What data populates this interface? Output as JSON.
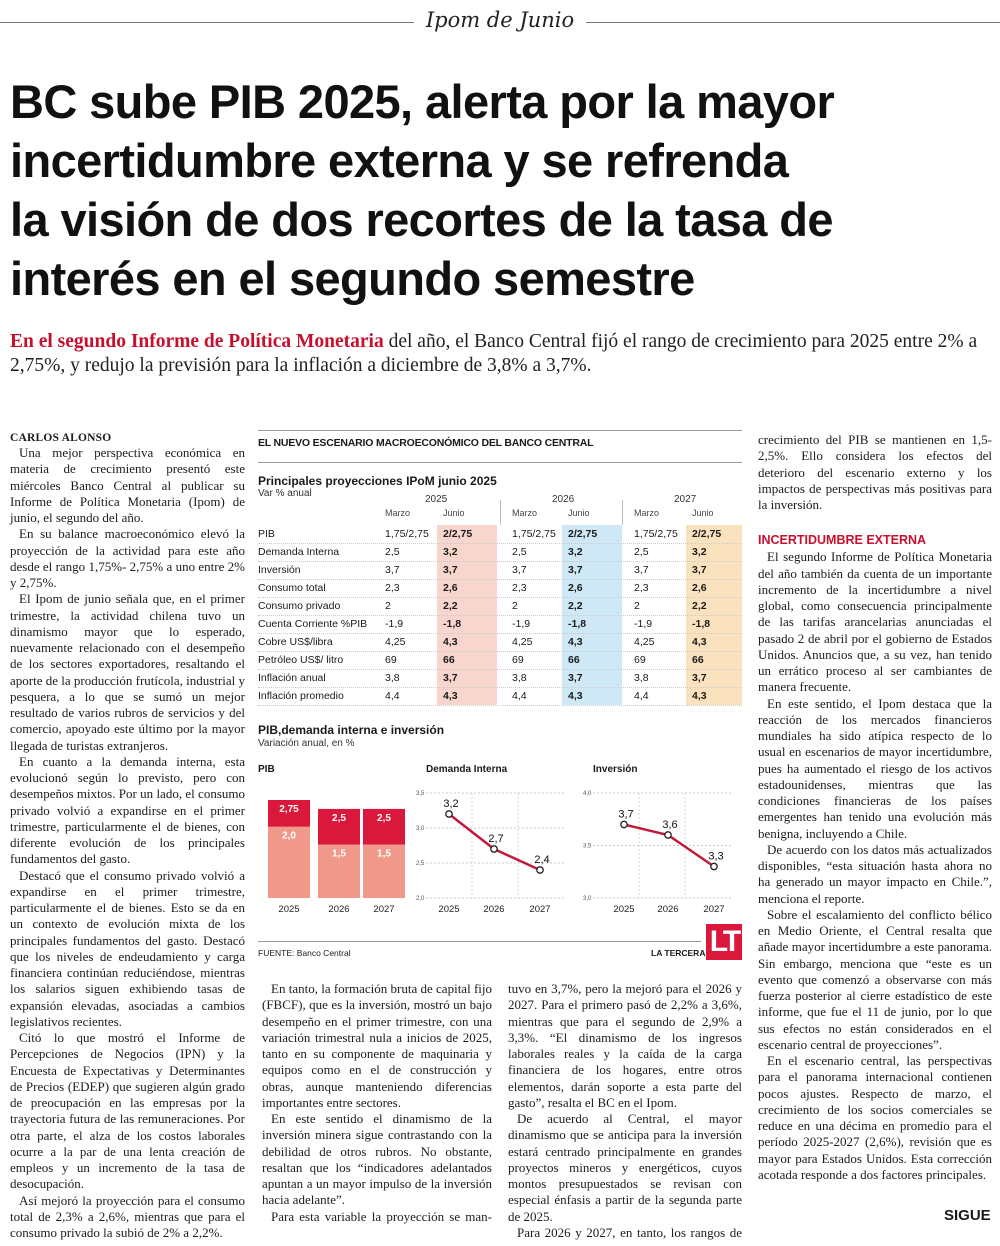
{
  "section_kicker": "Ipom de Junio",
  "headline_lines": [
    "BC sube PIB 2025, alerta por la mayor",
    "incertidumbre externa y se refrenda",
    "la visión de dos recortes de la tasa de",
    "interés en el segundo semestre"
  ],
  "deck": {
    "lead": "En el segundo Informe de Política Monetaria",
    "rest": " del año, el Banco Central fijó el rango de crecimiento para 2025 entre 2% a 2,75%, y redujo la previsión para la inflación a diciembre de 3,8% a 3,7%."
  },
  "byline": "CARLOS ALONSO",
  "col1": [
    "Una mejor perspectiva económica en materia de crecimiento presentó este miércoles Banco Central al publicar su Informe de Política Monetaria (Ipom) de junio, el segundo del año.",
    "En su balance macroeconómico elevó la proyección de la actividad para este año desde el rango 1,75%- 2,75% a uno entre 2% y 2,75%.",
    "El Ipom de junio señala que, en el primer trimestre, la actividad chilena tuvo un dinamismo mayor que lo esperado, nuevamente relacionado con el desempeño de los sectores exportadores, resaltando el aporte de la producción frutícola, industrial y pesquera, a lo que se sumó un mejor resultado de varios rubros de servicios y del comercio, apoyado este último por la mayor llegada de turistas extranjeros.",
    "En cuanto a la demanda interna, esta evolucionó según lo previsto, pero con desempeños mixtos. Por un lado, el consumo privado volvió a expandirse en el primer trimestre, particularmente el de bienes, con diferente evolución de los principales fundamentos del gasto.",
    "Destacó que el consumo privado volvió a expandirse en el primer trimestre, particularmente el de bienes. Esto se da en un contexto de evolución mixta de los principales fundamentos del gasto. Destacó que los niveles de endeudamiento y carga financiera continúan reduciéndose, mientras los salarios siguen exhibiendo tasas de expansión elevadas, asociadas a cambios legislativos recientes.",
    "Citó lo que mostró el Informe de Percepciones de Negocios (IPN) y la Encuesta de Expectativas y Determinantes de Precios (EDEP) que sugieren algún grado de preocupación en las empresas por la trayectoria futura de las remuneraciones. Por otra parte, el alza de los costos laborales ocurre a la par de una lenta creación de empleos y un incremento de la tasa de desocupación.",
    "Así mejoró la proyección para el consumo total de 2,3% a 2,6%, mientras que para el consumo privado la subió de 2% a 2,2%."
  ],
  "col2a": [
    "En tanto, la formación bruta de capital fijo (FBCF), que es la inversión, mostró un bajo desempeño en el primer trimestre, con una variación trimestral nula a inicios de 2025, tanto en su componente de maquinaria y equipos como en el de construcción y obras, aunque manteniendo diferencias importantes entre sectores.",
    "En este sentido el dinamismo de la inversión minera sigue contrastando con la debilidad de otros rubros. No obstante, resaltan que los “indicadores adelantados apuntan a un mayor impulso de la inversión hacia adelante”.",
    "Para esta variable la proyección se man-"
  ],
  "col2b": [
    "tuvo en 3,7%, pero la mejoró para el 2026 y 2027. Para el primero pasó de 2,2% a 3,6%, mientras que para el segundo de 2,9% a 3,3%. “El dinamismo de los ingresos laborales reales y la caída de la carga financiera de los hogares, entre otros elementos, darán soporte a esta parte del gasto”, resalta el BC en el Ipom.",
    "De acuerdo al Central, el mayor dinamismo que se anticipa para la inversión estará centrado principalmente en grandes proyectos mineros y energéticos, cuyos montos presupuestados se revisan con especial énfasis a partir de la segunda parte de 2025.",
    "Para 2026 y 2027, en tanto, los rangos de"
  ],
  "col3_cont": "crecimiento del PIB se mantienen en 1,5-2,5%. Ello considera los efectos del deterioro del escenario externo y los impactos de perspectivas más positivas para la inversión.",
  "col3_subhead": "INCERTIDUMBRE EXTERNA",
  "col3": [
    "El segundo Informe de Política Monetaria del año también da cuenta de un importante incremento de la incertidumbre a nivel global, como consecuencia principalmente de las tarifas arancelarias anunciadas el pasado 2 de abril por el gobierno de Estados Unidos. Anuncios que, a su vez, han tenido un errático proceso al ser cambiantes de manera frecuente.",
    "En este sentido, el Ipom destaca que la reacción de los mercados financieros mundiales ha sido atípica respecto de lo usual en escenarios de mayor incertidumbre, pues ha aumentado el riesgo de los activos estadounidenses, mientras que las condiciones financieras de los países emergentes han tenido una evolución más benigna, incluyendo a Chile.",
    "De acuerdo con los datos más actualizados disponibles, “esta situación hasta ahora no ha generado un mayor impacto en Chile.”, menciona el reporte.",
    "Sobre el escalamiento del conflicto bélico en Medio Oriente, el Central resalta que añade mayor incertidumbre a este panorama. Sin embargo, menciona que “este es un evento que comenzó a observarse con más fuerza posterior al cierre estadístico de este informe, que fue el 11 de junio, por lo que sus efectos no están considerados en el escenario central de proyecciones”.",
    "En el escenario central, las perspectivas para el panorama internacional contienen pocos ajustes. Respecto de marzo, el crecimiento de los socios comerciales se reduce en una décima en promedio para el período 2025-2027 (2,6%), revisión que es mayor para Estados Unidos. Esta corrección acotada responde a dos factores principales."
  ],
  "sigue": "SIGUE",
  "infographic": {
    "title": "EL NUEVO ESCENARIO MACROECONÓMICO DEL BANCO CENTRAL",
    "source": "FUENTE: Banco Central",
    "brand": "LA TERCERA",
    "logo_text": "LT",
    "colors": {
      "2025": "#f8d6cd",
      "2026": "#cfe8f5",
      "2027": "#fbe2bf",
      "bar_top": "#d9183b",
      "bar_bottom": "#f0998a",
      "line": "#c01b3a"
    }
  },
  "chart_data": [
    {
      "type": "table",
      "title": "Principales proyecciones IPoM junio 2025",
      "subtitle": "Var % anual",
      "years": [
        "2025",
        "2026",
        "2027"
      ],
      "subcolumns": [
        "Marzo",
        "Junio"
      ],
      "rows": [
        {
          "label": "PIB",
          "marzo": "1,75/2,75",
          "junio": "2/2,75"
        },
        {
          "label": "Demanda Interna",
          "marzo": "2,5",
          "junio": "3,2"
        },
        {
          "label": "Inversión",
          "marzo": "3,7",
          "junio": "3,7"
        },
        {
          "label": "Consumo total",
          "marzo": "2,3",
          "junio": "2,6"
        },
        {
          "label": "Consumo privado",
          "marzo": "2",
          "junio": "2,2"
        },
        {
          "label": "Cuenta Corriente %PIB",
          "marzo": "-1,9",
          "junio": "-1,8"
        },
        {
          "label": "Cobre US$/libra",
          "marzo": "4,25",
          "junio": "4,3"
        },
        {
          "label": "Petróleo US$/ litro",
          "marzo": "69",
          "junio": "66"
        },
        {
          "label": "Inflación anual",
          "marzo": "3,8",
          "junio": "3,7"
        },
        {
          "label": "Inflación promedio",
          "marzo": "4,4",
          "junio": "4,3"
        }
      ]
    },
    {
      "group_title": "PIB,demanda interna e inversión",
      "group_subtitle": "Variación anual, en %",
      "type": "bar",
      "title": "PIB",
      "categories": [
        "2025",
        "2026",
        "2027"
      ],
      "range_low": [
        2.0,
        1.5,
        1.5
      ],
      "range_high": [
        2.75,
        2.5,
        2.5
      ],
      "low_labels": [
        "2,0",
        "1,5",
        "1,5"
      ],
      "high_labels": [
        "2,75",
        "2,5",
        "2,5"
      ]
    },
    {
      "type": "line",
      "title": "Demanda Interna",
      "categories": [
        "2025",
        "2026",
        "2027"
      ],
      "values": [
        3.2,
        2.7,
        2.4
      ],
      "labels": [
        "3,2",
        "2,7",
        "2,4"
      ],
      "ylim": [
        2.0,
        3.5
      ],
      "yticks": [
        "2,0",
        "2,5",
        "3,0",
        "3,5"
      ],
      "grid": true
    },
    {
      "type": "line",
      "title": "Inversión",
      "categories": [
        "2025",
        "2026",
        "2027"
      ],
      "values": [
        3.7,
        3.6,
        3.3
      ],
      "labels": [
        "3,7",
        "3,6",
        "3,3"
      ],
      "ylim": [
        3.0,
        4.0
      ],
      "yticks": [
        "3,0",
        "3,5",
        "4,0"
      ],
      "grid": true
    }
  ]
}
